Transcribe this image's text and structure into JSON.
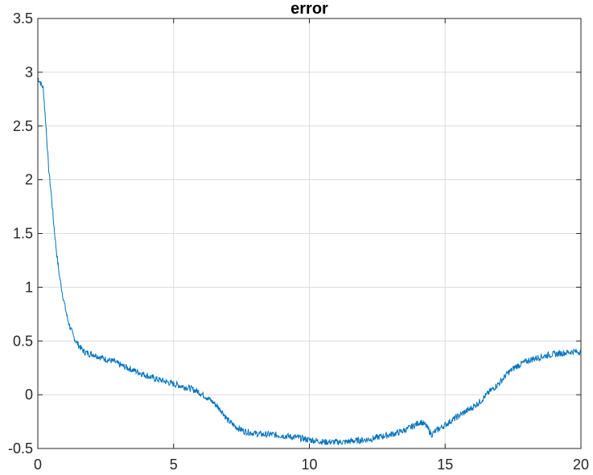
{
  "chart_data": {
    "type": "line",
    "title": "error",
    "xlabel": "",
    "ylabel": "",
    "xlim": [
      0,
      20
    ],
    "ylim": [
      -0.5,
      3.5
    ],
    "x_ticks": [
      "0",
      "5",
      "10",
      "15",
      "20"
    ],
    "y_ticks": [
      "-0.5",
      "0",
      "0.5",
      "1",
      "1.5",
      "2",
      "2.5",
      "3",
      "3.5"
    ],
    "grid": true,
    "legend": "none",
    "series": [
      {
        "color": "#0072BD",
        "x": [
          0,
          0.1,
          0.2,
          0.3,
          0.4,
          0.5,
          0.6,
          0.7,
          0.8,
          0.9,
          1.0,
          1.1,
          1.2,
          1.3,
          1.4,
          1.5,
          1.6,
          1.7,
          1.8,
          1.9,
          2.0,
          2.2,
          2.5,
          2.8,
          3.0,
          3.3,
          3.6,
          4.0,
          4.3,
          4.6,
          5.0,
          5.3,
          5.6,
          5.9,
          6.2,
          6.5,
          6.8,
          7.0,
          7.3,
          7.6,
          8.0,
          8.3,
          8.6,
          9.0,
          9.3,
          9.6,
          10.0,
          10.3,
          10.6,
          11.0,
          11.3,
          11.6,
          12.0,
          12.3,
          12.6,
          13.0,
          13.3,
          13.6,
          13.9,
          14.1,
          14.3,
          14.5,
          14.7,
          15.0,
          15.3,
          15.6,
          16.0,
          16.3,
          16.6,
          17.0,
          17.3,
          17.6,
          17.9,
          18.2,
          18.5,
          18.8,
          19.1,
          19.4,
          19.7,
          20.0
        ],
        "y": [
          2.95,
          2.9,
          2.85,
          2.5,
          2.1,
          1.85,
          1.55,
          1.3,
          1.1,
          0.95,
          0.82,
          0.7,
          0.62,
          0.55,
          0.5,
          0.46,
          0.43,
          0.4,
          0.39,
          0.38,
          0.38,
          0.36,
          0.33,
          0.31,
          0.28,
          0.25,
          0.22,
          0.18,
          0.15,
          0.13,
          0.1,
          0.08,
          0.06,
          0.03,
          -0.02,
          -0.08,
          -0.16,
          -0.24,
          -0.3,
          -0.34,
          -0.36,
          -0.37,
          -0.37,
          -0.38,
          -0.39,
          -0.4,
          -0.42,
          -0.43,
          -0.44,
          -0.44,
          -0.44,
          -0.43,
          -0.42,
          -0.41,
          -0.39,
          -0.37,
          -0.35,
          -0.32,
          -0.28,
          -0.25,
          -0.29,
          -0.37,
          -0.33,
          -0.28,
          -0.23,
          -0.18,
          -0.12,
          -0.06,
          0.02,
          0.11,
          0.2,
          0.26,
          0.3,
          0.33,
          0.35,
          0.37,
          0.38,
          0.39,
          0.4,
          0.4
        ]
      }
    ]
  }
}
